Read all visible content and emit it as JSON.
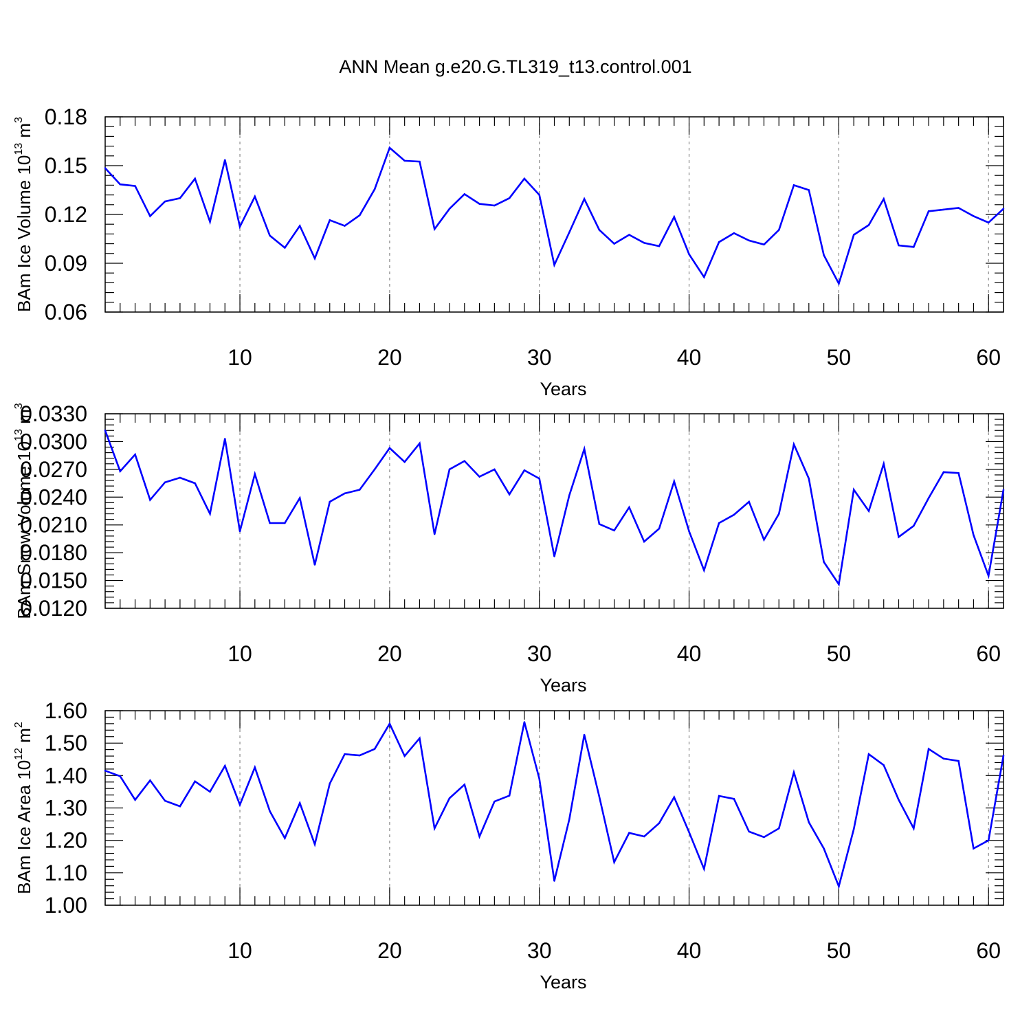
{
  "title": "ANN Mean g.e20.G.TL319_t13.control.001",
  "colors": {
    "series": "#0000ff",
    "axis": "#000000",
    "grid": "#888888"
  },
  "chart_data": [
    {
      "type": "line",
      "ylabel": {
        "main": "BAm Ice Volume 10",
        "sup1": "13",
        "mid": " m",
        "sup2": "3"
      },
      "xlabel": "Years",
      "xlim": [
        1,
        61
      ],
      "ylim": [
        0.06,
        0.18
      ],
      "yticks": [
        "0.06",
        "0.09",
        "0.12",
        "0.15",
        "0.18"
      ],
      "xticks": [
        "10",
        "20",
        "30",
        "40",
        "50",
        "60"
      ],
      "grid_x": [
        10,
        20,
        30,
        40,
        50,
        60
      ],
      "x": [
        1,
        2,
        3,
        4,
        5,
        6,
        7,
        8,
        9,
        10,
        11,
        12,
        13,
        14,
        15,
        16,
        17,
        18,
        19,
        20,
        21,
        22,
        23,
        24,
        25,
        26,
        27,
        28,
        29,
        30,
        31,
        32,
        33,
        34,
        35,
        36,
        37,
        38,
        39,
        40,
        41,
        42,
        43,
        44,
        45,
        46,
        47,
        48,
        49,
        50,
        51,
        52,
        53,
        54,
        55,
        56,
        57,
        58,
        59,
        60,
        61
      ],
      "values": [
        0.1485,
        0.1385,
        0.1375,
        0.119,
        0.128,
        0.13,
        0.142,
        0.1155,
        0.1535,
        0.1125,
        0.131,
        0.107,
        0.0995,
        0.113,
        0.093,
        0.1165,
        0.113,
        0.1195,
        0.1355,
        0.161,
        0.153,
        0.1525,
        0.111,
        0.1235,
        0.1325,
        0.1265,
        0.1255,
        0.13,
        0.142,
        0.132,
        0.089,
        0.109,
        0.1295,
        0.1105,
        0.102,
        0.1075,
        0.1025,
        0.1005,
        0.1185,
        0.0955,
        0.0815,
        0.103,
        0.1085,
        0.104,
        0.1015,
        0.1105,
        0.138,
        0.135,
        0.095,
        0.0775,
        0.1075,
        0.1135,
        0.1295,
        0.101,
        0.1,
        0.122,
        0.123,
        0.124,
        0.119,
        0.115,
        0.1235
      ]
    },
    {
      "type": "line",
      "ylabel": {
        "main": "BAm Snow Volume 10",
        "sup1": "13",
        "mid": " m",
        "sup2": "3"
      },
      "xlabel": "Years",
      "xlim": [
        1,
        61
      ],
      "ylim": [
        0.012,
        0.033
      ],
      "yticks": [
        "0.0120",
        "0.0150",
        "0.0180",
        "0.0210",
        "0.0240",
        "0.0270",
        "0.0300",
        "0.0330"
      ],
      "xticks": [
        "10",
        "20",
        "30",
        "40",
        "50",
        "60"
      ],
      "grid_x": [
        10,
        20,
        30,
        40,
        50,
        60
      ],
      "x": [
        1,
        2,
        3,
        4,
        5,
        6,
        7,
        8,
        9,
        10,
        11,
        12,
        13,
        14,
        15,
        16,
        17,
        18,
        19,
        20,
        21,
        22,
        23,
        24,
        25,
        26,
        27,
        28,
        29,
        30,
        31,
        32,
        33,
        34,
        35,
        36,
        37,
        38,
        39,
        40,
        41,
        42,
        43,
        44,
        45,
        46,
        47,
        48,
        49,
        50,
        51,
        52,
        53,
        54,
        55,
        56,
        57,
        58,
        59,
        60,
        61
      ],
      "values": [
        0.0312,
        0.0268,
        0.0286,
        0.0237,
        0.0256,
        0.0261,
        0.0255,
        0.0222,
        0.0303,
        0.0203,
        0.0265,
        0.0212,
        0.0212,
        0.0239,
        0.0167,
        0.0235,
        0.0244,
        0.0248,
        0.027,
        0.0293,
        0.0278,
        0.0298,
        0.02,
        0.027,
        0.0279,
        0.0262,
        0.027,
        0.0243,
        0.0269,
        0.026,
        0.0176,
        0.0242,
        0.0292,
        0.0211,
        0.0204,
        0.0229,
        0.0192,
        0.0206,
        0.0257,
        0.0203,
        0.0161,
        0.0212,
        0.0221,
        0.0235,
        0.0194,
        0.0222,
        0.0297,
        0.026,
        0.017,
        0.0146,
        0.0248,
        0.0225,
        0.0276,
        0.0197,
        0.0209,
        0.0239,
        0.0267,
        0.0266,
        0.0199,
        0.0155,
        0.0248
      ]
    },
    {
      "type": "line",
      "ylabel": {
        "main": "BAm Ice Area 10",
        "sup1": "12",
        "mid": " m",
        "sup2": "2"
      },
      "xlabel": "Years",
      "xlim": [
        1,
        61
      ],
      "ylim": [
        1.0,
        1.6
      ],
      "yticks": [
        "1.00",
        "1.10",
        "1.20",
        "1.30",
        "1.40",
        "1.50",
        "1.60"
      ],
      "xticks": [
        "10",
        "20",
        "30",
        "40",
        "50",
        "60"
      ],
      "grid_x": [
        10,
        20,
        30,
        40,
        50,
        60
      ],
      "x": [
        1,
        2,
        3,
        4,
        5,
        6,
        7,
        8,
        9,
        10,
        11,
        12,
        13,
        14,
        15,
        16,
        17,
        18,
        19,
        20,
        21,
        22,
        23,
        24,
        25,
        26,
        27,
        28,
        29,
        30,
        31,
        32,
        33,
        34,
        35,
        36,
        37,
        38,
        39,
        40,
        41,
        42,
        43,
        44,
        45,
        46,
        47,
        48,
        49,
        50,
        51,
        52,
        53,
        54,
        55,
        56,
        57,
        58,
        59,
        60,
        61
      ],
      "values": [
        1.415,
        1.398,
        1.325,
        1.385,
        1.322,
        1.305,
        1.382,
        1.35,
        1.43,
        1.31,
        1.425,
        1.29,
        1.207,
        1.315,
        1.188,
        1.375,
        1.466,
        1.462,
        1.482,
        1.56,
        1.46,
        1.515,
        1.237,
        1.33,
        1.372,
        1.212,
        1.32,
        1.338,
        1.565,
        1.39,
        1.075,
        1.265,
        1.526,
        1.335,
        1.133,
        1.223,
        1.212,
        1.253,
        1.333,
        1.225,
        1.112,
        1.337,
        1.328,
        1.227,
        1.21,
        1.237,
        1.41,
        1.256,
        1.175,
        1.058,
        1.235,
        1.466,
        1.432,
        1.325,
        1.237,
        1.482,
        1.452,
        1.445,
        1.175,
        1.2,
        1.462
      ]
    }
  ]
}
